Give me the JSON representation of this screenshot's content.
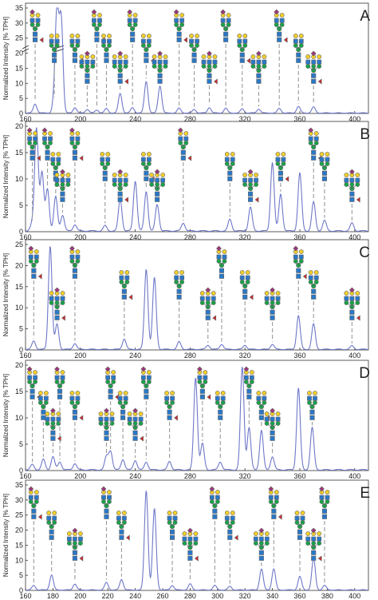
{
  "chart_data": [
    {
      "type": "line",
      "panel_label": "A",
      "ylabel": "Normalized Intensity [% TPH]",
      "xlim": [
        160,
        410
      ],
      "ylim": [
        0,
        35
      ],
      "yticks": [
        0,
        5,
        10,
        15,
        20,
        25,
        30,
        35
      ],
      "xticks": [
        160,
        200,
        240,
        280,
        320,
        360,
        400
      ],
      "axis_break": true,
      "peaks": [
        {
          "x": 167,
          "y": 3.0
        },
        {
          "x": 181,
          "y": 4.2
        },
        {
          "x": 183,
          "y": 33.0
        },
        {
          "x": 186,
          "y": 31.0
        },
        {
          "x": 196,
          "y": 1.8
        },
        {
          "x": 205,
          "y": 1.2
        },
        {
          "x": 212,
          "y": 1.0
        },
        {
          "x": 219,
          "y": 1.5
        },
        {
          "x": 229,
          "y": 6.5
        },
        {
          "x": 238,
          "y": 1.8
        },
        {
          "x": 248,
          "y": 10.5
        },
        {
          "x": 258,
          "y": 9.0
        },
        {
          "x": 272,
          "y": 1.6
        },
        {
          "x": 283,
          "y": 1.2
        },
        {
          "x": 294,
          "y": 1.8
        },
        {
          "x": 306,
          "y": 1.6
        },
        {
          "x": 318,
          "y": 1.4
        },
        {
          "x": 330,
          "y": 1.3
        },
        {
          "x": 345,
          "y": 1.5
        },
        {
          "x": 359,
          "y": 2.2
        },
        {
          "x": 370,
          "y": 2.0
        }
      ]
    },
    {
      "type": "line",
      "panel_label": "B",
      "ylabel": "Normalized Intensity [% TPH]",
      "xlim": [
        160,
        410
      ],
      "ylim": [
        0,
        20
      ],
      "yticks": [
        0,
        5,
        10,
        15,
        20
      ],
      "xticks": [
        160,
        200,
        240,
        280,
        320,
        360,
        400
      ],
      "peaks": [
        {
          "x": 165,
          "y": 1.5
        },
        {
          "x": 168,
          "y": 19.5
        },
        {
          "x": 172,
          "y": 11.0
        },
        {
          "x": 176,
          "y": 8.0
        },
        {
          "x": 182,
          "y": 6.5
        },
        {
          "x": 187,
          "y": 3.0
        },
        {
          "x": 196,
          "y": 1.2
        },
        {
          "x": 218,
          "y": 1.0
        },
        {
          "x": 229,
          "y": 6.0
        },
        {
          "x": 240,
          "y": 9.5
        },
        {
          "x": 248,
          "y": 7.5
        },
        {
          "x": 256,
          "y": 5.0
        },
        {
          "x": 275,
          "y": 1.5
        },
        {
          "x": 309,
          "y": 2.2
        },
        {
          "x": 324,
          "y": 4.5
        },
        {
          "x": 340,
          "y": 13.0
        },
        {
          "x": 346,
          "y": 7.0
        },
        {
          "x": 360,
          "y": 11.0
        },
        {
          "x": 370,
          "y": 5.5
        },
        {
          "x": 378,
          "y": 2.0
        },
        {
          "x": 398,
          "y": 1.5
        }
      ]
    },
    {
      "type": "line",
      "panel_label": "C",
      "ylabel": "Normalized Intensity [% TPH]",
      "xlim": [
        160,
        410
      ],
      "ylim": [
        0,
        25
      ],
      "yticks": [
        0,
        5,
        10,
        15,
        20,
        25
      ],
      "xticks": [
        160,
        200,
        240,
        280,
        320,
        360,
        400
      ],
      "peaks": [
        {
          "x": 166,
          "y": 2.0
        },
        {
          "x": 178,
          "y": 24.5
        },
        {
          "x": 183,
          "y": 6.0
        },
        {
          "x": 196,
          "y": 1.4
        },
        {
          "x": 232,
          "y": 2.5
        },
        {
          "x": 248,
          "y": 19.0
        },
        {
          "x": 254,
          "y": 17.0
        },
        {
          "x": 272,
          "y": 1.8
        },
        {
          "x": 293,
          "y": 1.0
        },
        {
          "x": 303,
          "y": 1.2
        },
        {
          "x": 320,
          "y": 1.0
        },
        {
          "x": 340,
          "y": 1.2
        },
        {
          "x": 359,
          "y": 8.0
        },
        {
          "x": 370,
          "y": 6.0
        },
        {
          "x": 398,
          "y": 0.8
        }
      ]
    },
    {
      "type": "line",
      "panel_label": "D",
      "ylabel": "Normalized Intensity [% TPH]",
      "xlim": [
        160,
        410
      ],
      "ylim": [
        0,
        20
      ],
      "yticks": [
        0,
        5,
        10,
        15,
        20
      ],
      "xticks": [
        160,
        200,
        240,
        280,
        320,
        360,
        400
      ],
      "peaks": [
        {
          "x": 165,
          "y": 1.0
        },
        {
          "x": 173,
          "y": 2.0
        },
        {
          "x": 180,
          "y": 2.5
        },
        {
          "x": 185,
          "y": 1.5
        },
        {
          "x": 196,
          "y": 1.2
        },
        {
          "x": 219,
          "y": 2.5
        },
        {
          "x": 222,
          "y": 3.5
        },
        {
          "x": 231,
          "y": 2.0
        },
        {
          "x": 240,
          "y": 1.8
        },
        {
          "x": 248,
          "y": 1.5
        },
        {
          "x": 265,
          "y": 1.6
        },
        {
          "x": 284,
          "y": 17.5
        },
        {
          "x": 289,
          "y": 5.0
        },
        {
          "x": 302,
          "y": 1.5
        },
        {
          "x": 318,
          "y": 19.5
        },
        {
          "x": 323,
          "y": 8.0
        },
        {
          "x": 332,
          "y": 7.5
        },
        {
          "x": 340,
          "y": 2.5
        },
        {
          "x": 359,
          "y": 15.5
        },
        {
          "x": 369,
          "y": 8.0
        }
      ]
    },
    {
      "type": "line",
      "panel_label": "E",
      "ylabel": "Normalized Intensity [% TPH]",
      "xlim": [
        160,
        410
      ],
      "ylim": [
        0,
        35
      ],
      "yticks": [
        0,
        5,
        10,
        15,
        20,
        25,
        30,
        35
      ],
      "xticks": [
        160,
        180,
        200,
        220,
        240,
        260,
        280,
        300,
        320,
        340,
        360,
        380,
        400
      ],
      "peaks": [
        {
          "x": 166,
          "y": 1.5
        },
        {
          "x": 179,
          "y": 5.0
        },
        {
          "x": 196,
          "y": 2.0
        },
        {
          "x": 219,
          "y": 2.5
        },
        {
          "x": 230,
          "y": 3.5
        },
        {
          "x": 248,
          "y": 33.0
        },
        {
          "x": 254,
          "y": 27.0
        },
        {
          "x": 267,
          "y": 1.5
        },
        {
          "x": 280,
          "y": 2.0
        },
        {
          "x": 298,
          "y": 1.5
        },
        {
          "x": 309,
          "y": 1.2
        },
        {
          "x": 332,
          "y": 7.0
        },
        {
          "x": 341,
          "y": 7.0
        },
        {
          "x": 360,
          "y": 4.5
        },
        {
          "x": 370,
          "y": 10.5
        },
        {
          "x": 378,
          "y": 1.5
        }
      ]
    }
  ]
}
